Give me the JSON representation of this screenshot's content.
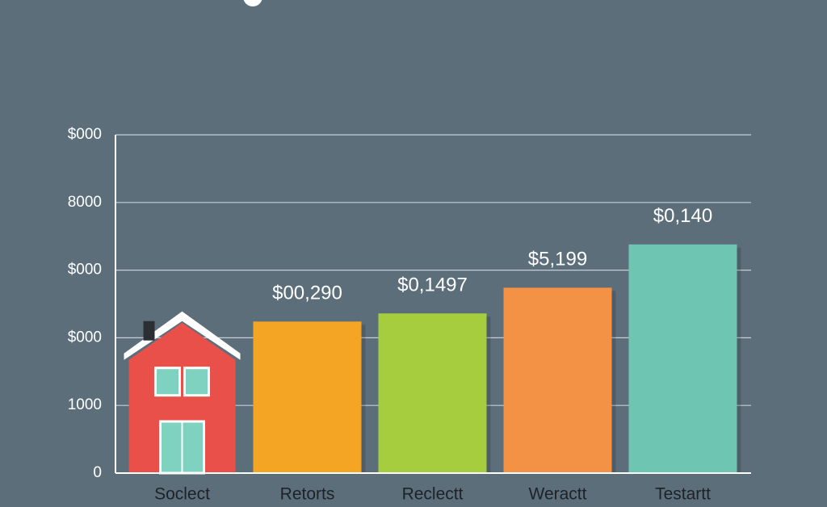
{
  "chart_data": {
    "type": "bar",
    "categories": [
      "Soclect",
      "Retorts",
      "Reclectt",
      "Weractt",
      "Testartt"
    ],
    "values": [
      2390,
      2240,
      2360,
      2740,
      3380
    ],
    "colors": [
      "#e9504a",
      "#f5a524",
      "#a6cd3e",
      "#f39245",
      "#6ec6b2"
    ],
    "annotations": [
      "$00,290",
      "$0,1497",
      "$5,199",
      "$0,140"
    ],
    "ylim": [
      0,
      5000
    ],
    "yticks": [
      0,
      1000,
      {
        "value": 2000,
        "label": "$000"
      },
      {
        "value": 3000,
        "label": "$000"
      },
      {
        "value": 4000,
        "label": "8000"
      },
      {
        "value": 5000,
        "label": "$000"
      }
    ],
    "grid": true
  }
}
